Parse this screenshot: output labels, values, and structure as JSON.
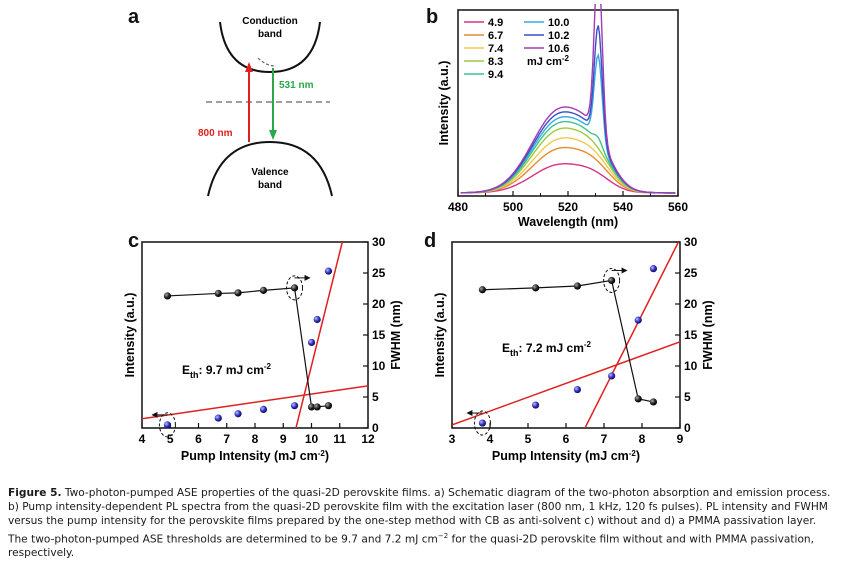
{
  "panels": {
    "a": {
      "letter": "a",
      "conduction_label_1": "Conduction",
      "conduction_label_2": "band",
      "valence_label_1": "Valence",
      "valence_label_2": "band",
      "excite_label": "800 nm",
      "emit_label": "531 nm",
      "colors": {
        "excite": "#e02020",
        "emit": "#2aa84a"
      }
    },
    "b": {
      "letter": "b",
      "unit_label": "mJ cm",
      "unit_sup": "-2"
    },
    "c": {
      "letter": "c",
      "eth_label": "E",
      "eth_sub": "th",
      "eth_value": ": 9.7 mJ cm",
      "eth_sup": "-2"
    },
    "d": {
      "letter": "d",
      "eth_label": "E",
      "eth_sub": "th",
      "eth_value": ": 7.2 mJ cm",
      "eth_sup": "-2"
    }
  },
  "chart_data": [
    {
      "id": "b",
      "type": "line",
      "xlabel": "Wavelength (nm)",
      "ylabel": "Intensity (a.u.)",
      "xlim": [
        480,
        560
      ],
      "xticks": [
        "480",
        "500",
        "520",
        "540",
        "560"
      ],
      "legend_position": "top-left",
      "series": [
        {
          "name": "4.9",
          "color": "#d63384",
          "broad_peak": 0.18,
          "sharp_peak": 0.0
        },
        {
          "name": "6.7",
          "color": "#e88a2e",
          "broad_peak": 0.28,
          "sharp_peak": 0.0
        },
        {
          "name": "7.4",
          "color": "#f2c94c",
          "broad_peak": 0.34,
          "sharp_peak": 0.0
        },
        {
          "name": "8.3",
          "color": "#9ccc3c",
          "broad_peak": 0.4,
          "sharp_peak": 0.0
        },
        {
          "name": "9.4",
          "color": "#3cc48c",
          "broad_peak": 0.44,
          "sharp_peak": 0.04
        },
        {
          "name": "10.0",
          "color": "#38a8e0",
          "broad_peak": 0.47,
          "sharp_peak": 0.55
        },
        {
          "name": "10.2",
          "color": "#3a4fc4",
          "broad_peak": 0.5,
          "sharp_peak": 0.72
        },
        {
          "name": "10.6",
          "color": "#a03cb4",
          "broad_peak": 0.53,
          "sharp_peak": 1.1
        }
      ]
    },
    {
      "id": "c",
      "type": "scatter",
      "xlabel": "Pump Intensity (mJ cm",
      "xlabel_sup": "-2",
      "xlabel_end": ")",
      "ylabel": "Intensity (a.u.)",
      "y2label": "FWHM (nm)",
      "xlim": [
        4,
        12
      ],
      "y2lim": [
        0,
        30
      ],
      "xticks": [
        "4",
        "5",
        "6",
        "7",
        "8",
        "9",
        "10",
        "11",
        "12"
      ],
      "y2ticks": [
        "0",
        "5",
        "10",
        "15",
        "20",
        "25",
        "30"
      ],
      "intensity": {
        "x": [
          4.9,
          6.7,
          7.4,
          8.3,
          9.4,
          10.0,
          10.2,
          10.6
        ],
        "y": [
          0.5,
          1.6,
          2.3,
          3.0,
          3.6,
          13.8,
          17.5,
          25.3
        ]
      },
      "fwhm": {
        "x": [
          4.9,
          6.7,
          7.4,
          8.3,
          9.4,
          10.0,
          10.2,
          10.6
        ],
        "y": [
          21.3,
          21.7,
          21.8,
          22.2,
          22.6,
          3.4,
          3.4,
          3.6
        ]
      }
    },
    {
      "id": "d",
      "type": "scatter",
      "xlabel": "Pump Intensity (mJ cm",
      "xlabel_sup": "-2",
      "xlabel_end": ")",
      "ylabel": "Intensity (a.u.)",
      "y2label": "FWHM (nm)",
      "xlim": [
        3,
        9
      ],
      "y2lim": [
        0,
        30
      ],
      "xticks": [
        "3",
        "4",
        "5",
        "6",
        "7",
        "8",
        "9"
      ],
      "y2ticks": [
        "0",
        "5",
        "10",
        "15",
        "20",
        "25",
        "30"
      ],
      "intensity": {
        "x": [
          3.8,
          5.2,
          6.3,
          7.2,
          7.9,
          8.3
        ],
        "y": [
          0.8,
          3.7,
          6.2,
          8.4,
          17.4,
          25.7
        ]
      },
      "fwhm": {
        "x": [
          3.8,
          5.2,
          6.3,
          7.2,
          7.9,
          8.3
        ],
        "y": [
          22.3,
          22.6,
          22.9,
          23.8,
          4.7,
          4.2
        ]
      }
    }
  ],
  "caption": {
    "label": "Figure 5.",
    "text": " Two-photon-pumped ASE properties of the quasi-2D perovskite films. a) Schematic diagram of the two-photon absorption and emission process. b) Pump intensity-dependent PL spectra from the quasi-2D perovskite film with the excitation laser (800 nm, 1 kHz, 120 fs pulses). PL intensity and FWHM versus the pump intensity for the perovskite films prepared by the one-step method with CB as anti-solvent c) without and d) a PMMA passivation layer. The two-photon-pumped ASE thresholds are determined to be 9.7 and 7.2 mJ cm",
    "text_sup": "−2",
    "text_end": " for the quasi-2D perovskite film without and with PMMA passivation, respectively."
  }
}
